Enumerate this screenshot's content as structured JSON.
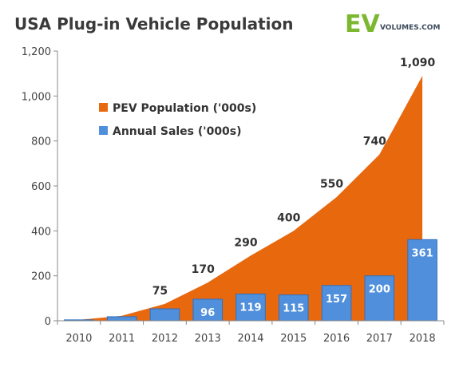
{
  "title": "USA Plug-in Vehicle Population",
  "logo": {
    "ev": "EV",
    "volumes": "VOLUMES.COM"
  },
  "colors": {
    "population": "#e8680e",
    "sales": "#4f8fdb",
    "sales_edge": "#2f6fbf",
    "axis": "#888888"
  },
  "chart_data": {
    "type": "area+bar",
    "title": "USA Plug-in Vehicle Population",
    "categories": [
      "2010",
      "2011",
      "2012",
      "2013",
      "2014",
      "2015",
      "2016",
      "2017",
      "2018"
    ],
    "series": [
      {
        "name": "PEV Population ('000s)",
        "type": "area",
        "values": [
          4,
          22,
          75,
          170,
          290,
          400,
          550,
          740,
          1090
        ],
        "labels": [
          "",
          "",
          "75",
          "170",
          "290",
          "400",
          "550",
          "740",
          "1,090"
        ]
      },
      {
        "name": "Annual Sales ('000s)",
        "type": "bar",
        "values": [
          4,
          18,
          53,
          96,
          119,
          115,
          157,
          200,
          361
        ],
        "labels": [
          "",
          "",
          "",
          "96",
          "119",
          "115",
          "157",
          "200",
          "361"
        ]
      }
    ],
    "ylim": [
      0,
      1200
    ],
    "yticks": [
      0,
      200,
      400,
      600,
      800,
      1000,
      1200
    ],
    "ytick_labels": [
      "0",
      "200",
      "400",
      "600",
      "800",
      "1,000",
      "1,200"
    ],
    "grid": false,
    "legend": "top-left"
  }
}
